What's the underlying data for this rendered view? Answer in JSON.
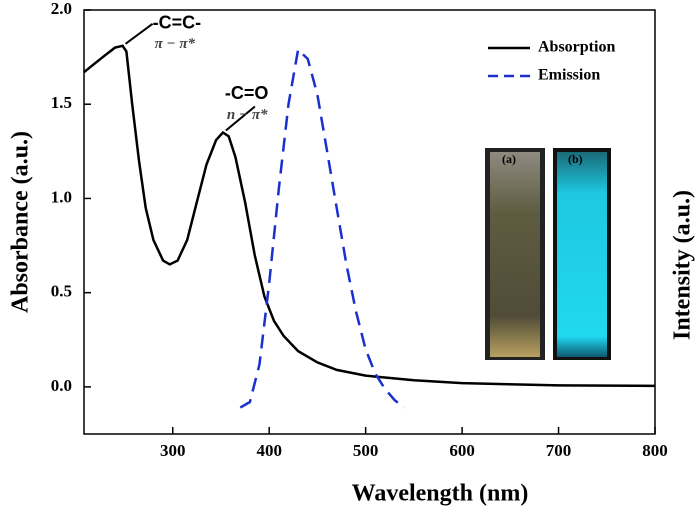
{
  "chart_data": {
    "type": "line",
    "xlabel": "Wavelength (nm)",
    "ylabel": "Absorbance (a.u.)",
    "y2label": "Intensity (a.u.)",
    "xlim": [
      208,
      800
    ],
    "ylim": [
      -0.25,
      2.0
    ],
    "xticks": [
      300,
      400,
      500,
      600,
      700,
      800
    ],
    "yticks": [
      {
        "value": 0,
        "label": "0.0"
      },
      {
        "value": 0.5,
        "label": "0.5"
      },
      {
        "value": 1,
        "label": "1.0"
      },
      {
        "value": 1.5,
        "label": "1.5"
      },
      {
        "value": 2,
        "label": "2.0"
      }
    ],
    "legend": "upper right",
    "series": [
      {
        "name": "Absorption",
        "color": "#000000",
        "dash": "solid",
        "x": [
          208,
          220,
          230,
          240,
          248,
          252,
          258,
          265,
          272,
          280,
          290,
          297,
          305,
          315,
          325,
          335,
          345,
          352,
          358,
          365,
          375,
          385,
          395,
          405,
          415,
          430,
          450,
          470,
          500,
          550,
          600,
          700,
          800
        ],
        "values": [
          1.67,
          1.72,
          1.76,
          1.8,
          1.81,
          1.78,
          1.5,
          1.2,
          0.95,
          0.78,
          0.67,
          0.65,
          0.67,
          0.78,
          0.98,
          1.18,
          1.31,
          1.35,
          1.33,
          1.22,
          0.98,
          0.7,
          0.48,
          0.35,
          0.27,
          0.19,
          0.13,
          0.09,
          0.06,
          0.035,
          0.02,
          0.008,
          0.005
        ]
      },
      {
        "name": "Emission",
        "color": "#1a2fd0",
        "dash": "dashed",
        "x": [
          370,
          380,
          390,
          400,
          410,
          420,
          430,
          440,
          450,
          460,
          470,
          480,
          490,
          500,
          510,
          520,
          530,
          540
        ],
        "values": [
          -0.11,
          -0.08,
          0.12,
          0.55,
          1.05,
          1.5,
          1.79,
          1.74,
          1.55,
          1.25,
          0.95,
          0.65,
          0.4,
          0.2,
          0.07,
          -0.01,
          -0.07,
          -0.11
        ]
      }
    ],
    "annotations": [
      {
        "text": "-C=C-",
        "sub": "π − π*",
        "x": 248,
        "y": 1.81
      },
      {
        "text": "-C=O",
        "sub": "n − π*",
        "x": 352,
        "y": 1.35
      }
    ],
    "inset_labels": [
      "(a)",
      "(b)"
    ]
  }
}
